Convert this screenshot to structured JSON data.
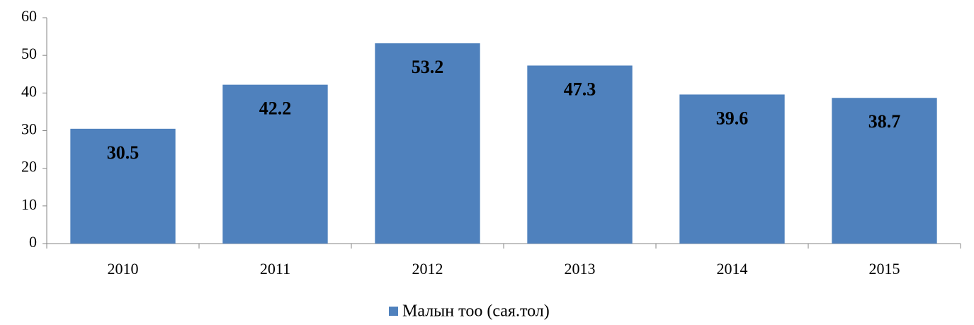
{
  "chart_data": {
    "type": "bar",
    "categories": [
      "2010",
      "2011",
      "2012",
      "2013",
      "2014",
      "2015"
    ],
    "series": [
      {
        "name": "Малын тоо (сая.тол)",
        "color": "#4f81bd",
        "values": [
          30.5,
          42.2,
          53.2,
          47.3,
          39.6,
          38.7
        ]
      }
    ],
    "ylim": [
      0,
      60
    ],
    "yticks": [
      0,
      10,
      20,
      30,
      40,
      50,
      60
    ],
    "grid": false,
    "legend": "bottom"
  }
}
